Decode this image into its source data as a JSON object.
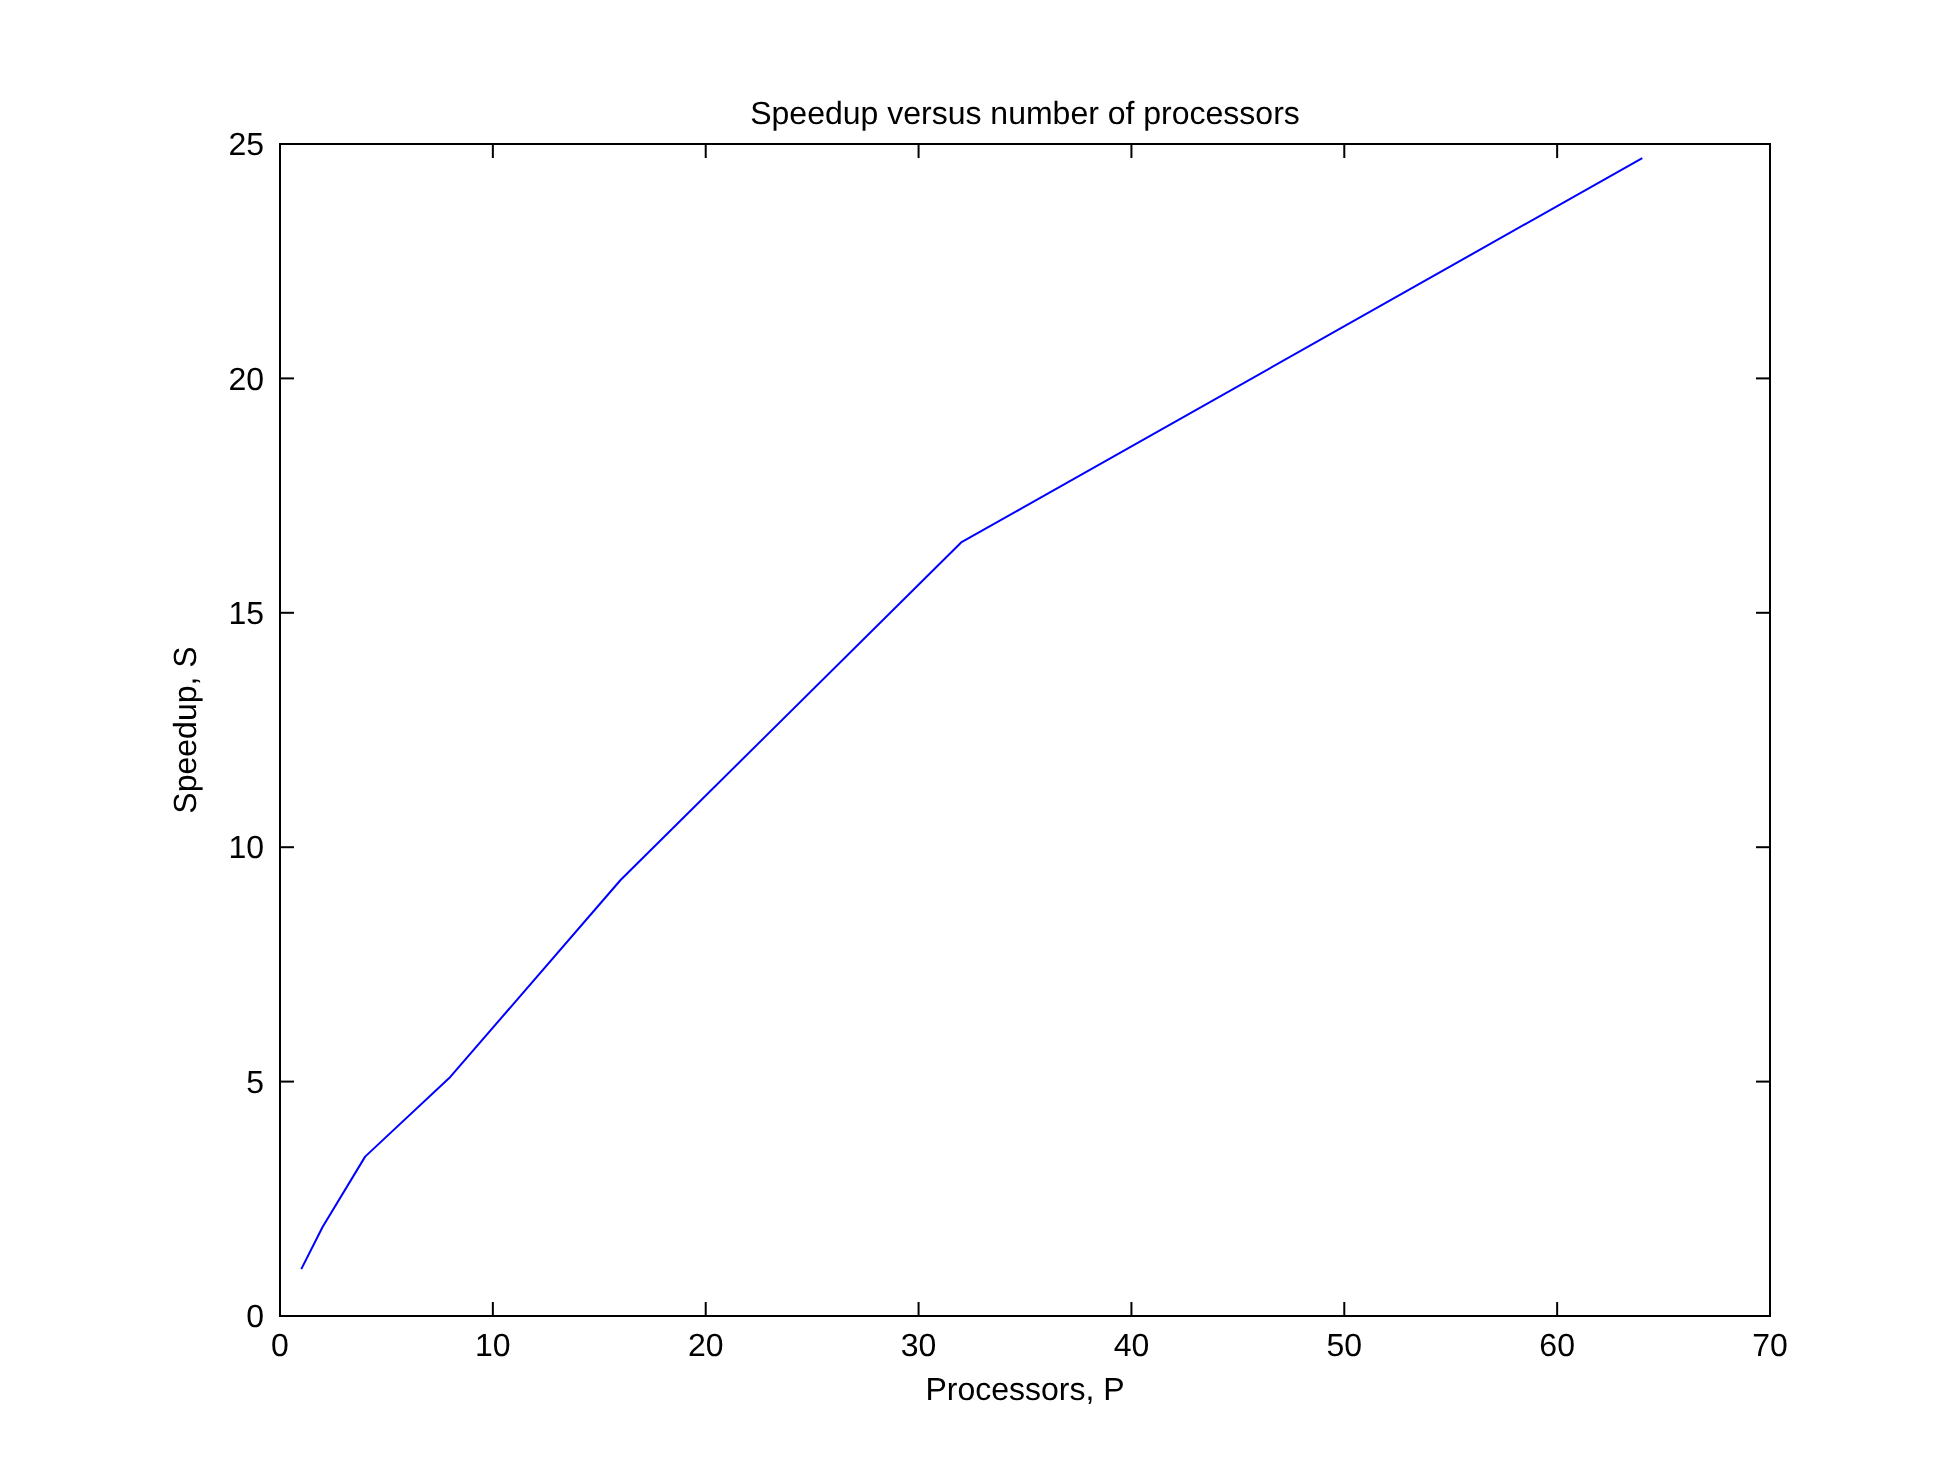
{
  "chart_data": {
    "type": "line",
    "title": "Speedup versus number of processors",
    "xlabel": "Processors, P",
    "ylabel": "Speedup, S",
    "x": [
      1,
      2,
      4,
      8,
      16,
      32,
      64
    ],
    "series": [
      {
        "color": "#0000ff",
        "values": [
          1.0,
          1.9,
          3.4,
          5.1,
          9.3,
          16.5,
          24.7
        ]
      }
    ],
    "xlim": [
      0,
      70
    ],
    "xticks": [
      0,
      10,
      20,
      30,
      40,
      50,
      60,
      70
    ],
    "ylim": [
      0,
      25
    ],
    "yticks": [
      0,
      5,
      10,
      15,
      20,
      25
    ],
    "grid": false,
    "marker": "none",
    "line_style": "solid"
  }
}
